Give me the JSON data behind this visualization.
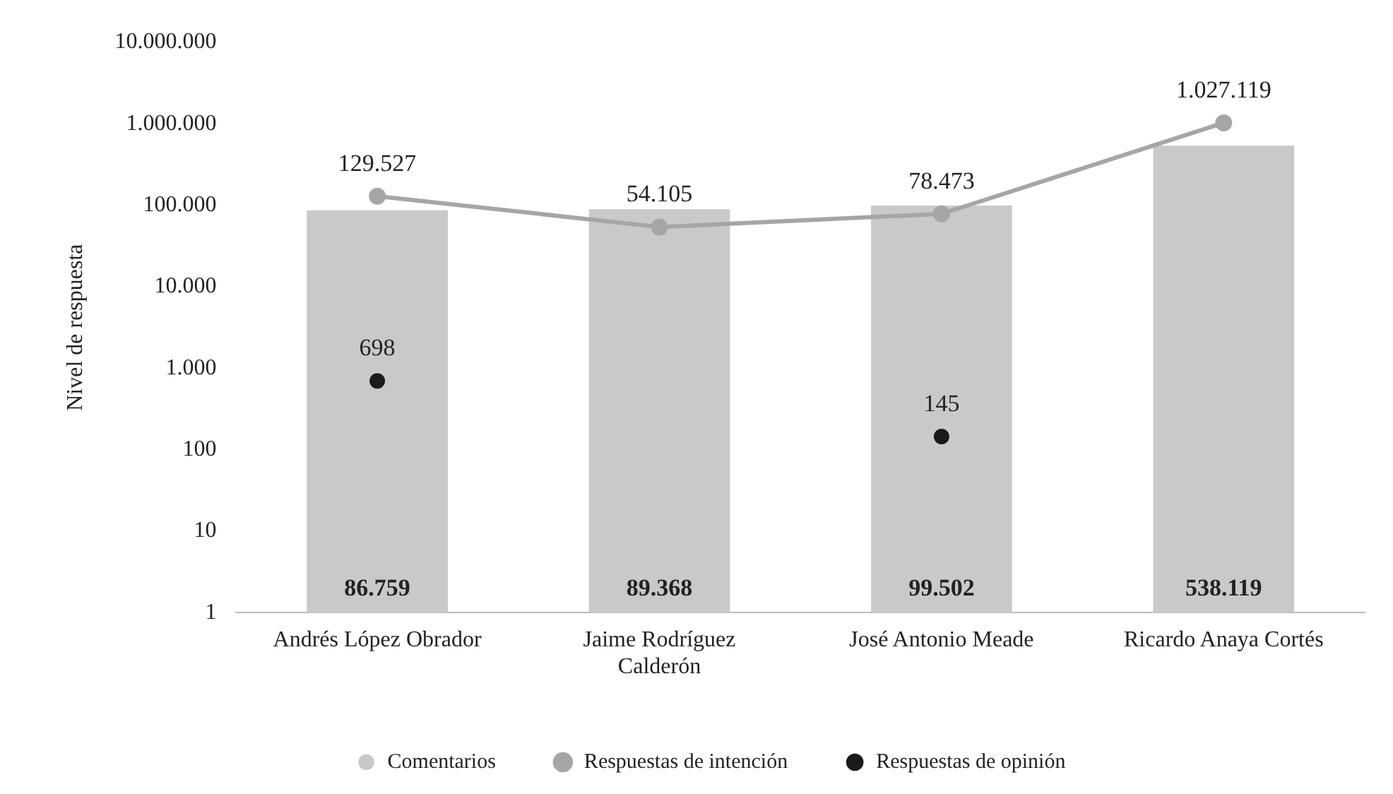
{
  "chart_data": {
    "type": "bar",
    "ylabel": "Nivel de respuesta",
    "log": true,
    "grid": false,
    "legend": "bottom",
    "marker": "circle",
    "categories": [
      "Andrés López Obrador",
      "Jaime Rodríguez Calderón",
      "José Antonio Meade",
      "Ricardo Anaya Cortés"
    ],
    "ylim": [
      1,
      10000000
    ],
    "yticks": [
      1,
      10,
      100,
      {
        "value": 1000,
        "label": "1.000"
      },
      {
        "value": 10000,
        "label": "10.000"
      },
      {
        "value": 100000,
        "label": "100.000"
      },
      {
        "value": 1000000,
        "label": "1.000.000"
      },
      {
        "value": 10000000,
        "label": "10.000.000"
      }
    ],
    "series": [
      {
        "name": "Comentarios",
        "color": "#c9c9c9",
        "values": [
          86759,
          89368,
          99502,
          538119
        ],
        "value_labels": [
          "86.759",
          "89.368",
          "99.502",
          "538.119"
        ]
      },
      {
        "name": "Respuestas de intención",
        "type": "line",
        "color": "#a6a6a6",
        "values": [
          129527,
          54105,
          78473,
          1027119
        ],
        "value_labels": [
          "129.527",
          "54.105",
          "78.473",
          "1.027.119"
        ]
      },
      {
        "name": "Respuestas de opinión",
        "type": "scatter",
        "color": "#1a1a1a",
        "x": [
          "Andrés López Obrador",
          "José Antonio Meade"
        ],
        "values": [
          698,
          145
        ],
        "value_labels": [
          "698",
          "145"
        ]
      }
    ]
  }
}
